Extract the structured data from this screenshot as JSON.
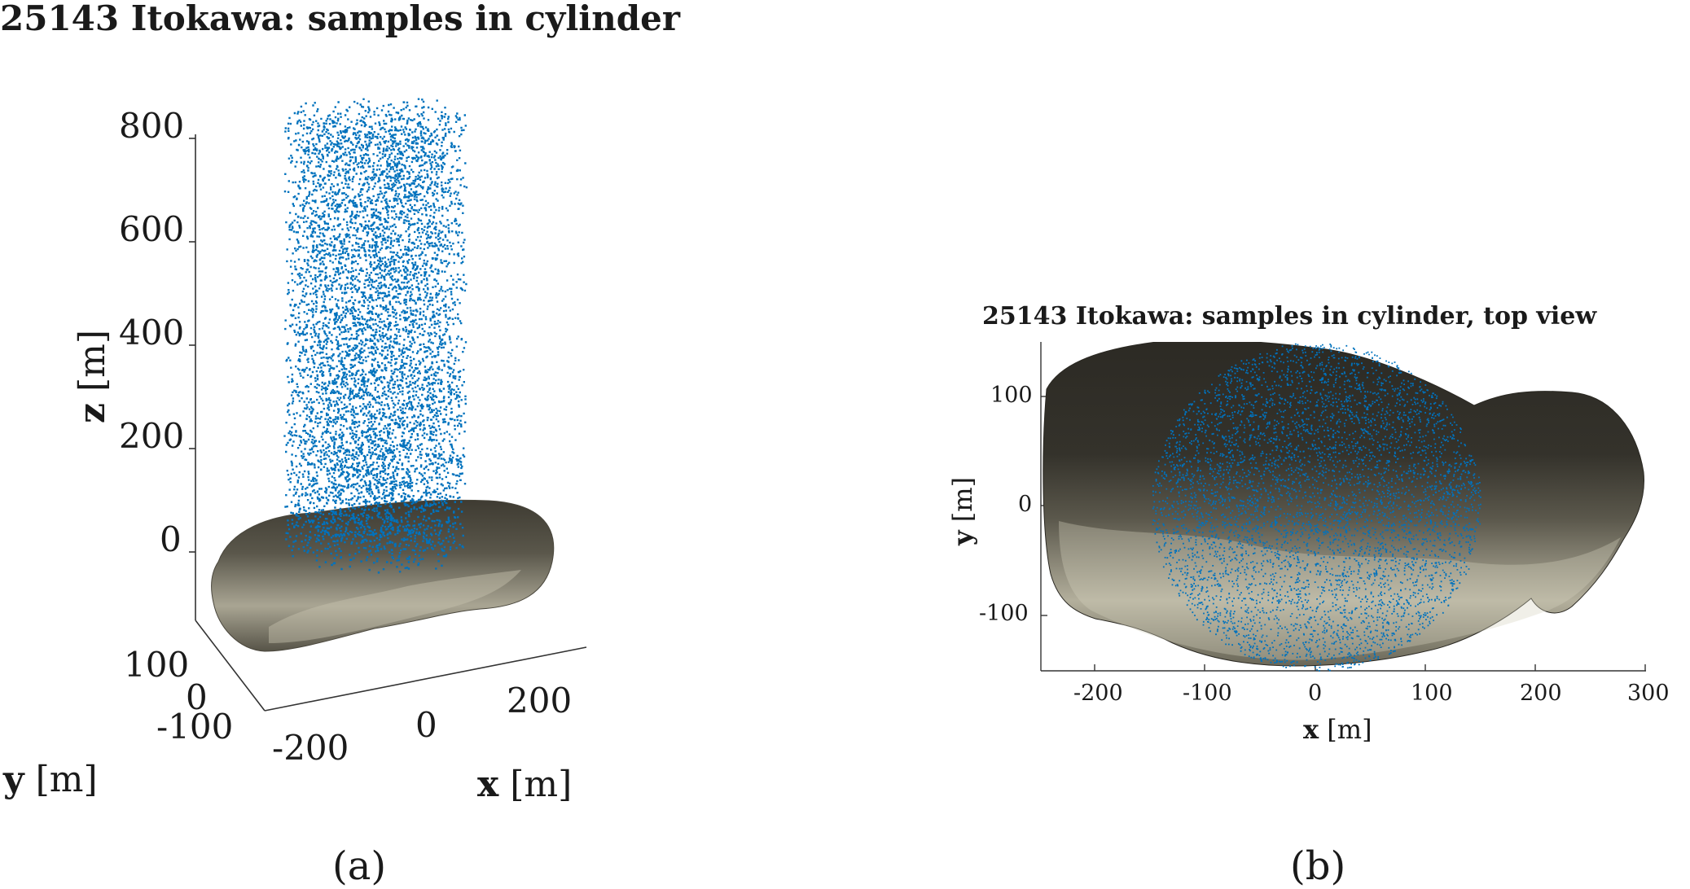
{
  "chart_data": [
    {
      "type": "scatter",
      "title": "25143 Itokawa: samples in cylinder",
      "view": "3d",
      "xlabel": "x [m]",
      "ylabel": "y [m]",
      "zlabel": "z [m]",
      "x_ticks": [
        "-200",
        "0",
        "200"
      ],
      "y_ticks": [
        "100",
        "0",
        "-100"
      ],
      "z_ticks": [
        "800",
        "600",
        "400",
        "200",
        "0"
      ],
      "zlim": [
        -100,
        850
      ],
      "cylinder": {
        "center": [
          0,
          0
        ],
        "radius": 150,
        "z_range": [
          0,
          850
        ],
        "samples": "uniform"
      },
      "marker_color": "#0072BD",
      "surface_color": "#7d7a6c",
      "panel_label": "(a)"
    },
    {
      "type": "scatter",
      "title": "25143 Itokawa: samples in cylinder, top view",
      "view": "top",
      "xlabel": "x [m]",
      "ylabel": "y [m]",
      "x_ticks": [
        "-200",
        "-100",
        "0",
        "100",
        "200",
        "300"
      ],
      "y_ticks": [
        "100",
        "0",
        "-100"
      ],
      "xlim": [
        -250,
        300
      ],
      "ylim": [
        -150,
        150
      ],
      "circle": {
        "center": [
          0,
          0
        ],
        "radius": 150
      },
      "marker_color": "#0072BD",
      "surface_color": "#34322a",
      "panel_label": "(b)"
    }
  ]
}
